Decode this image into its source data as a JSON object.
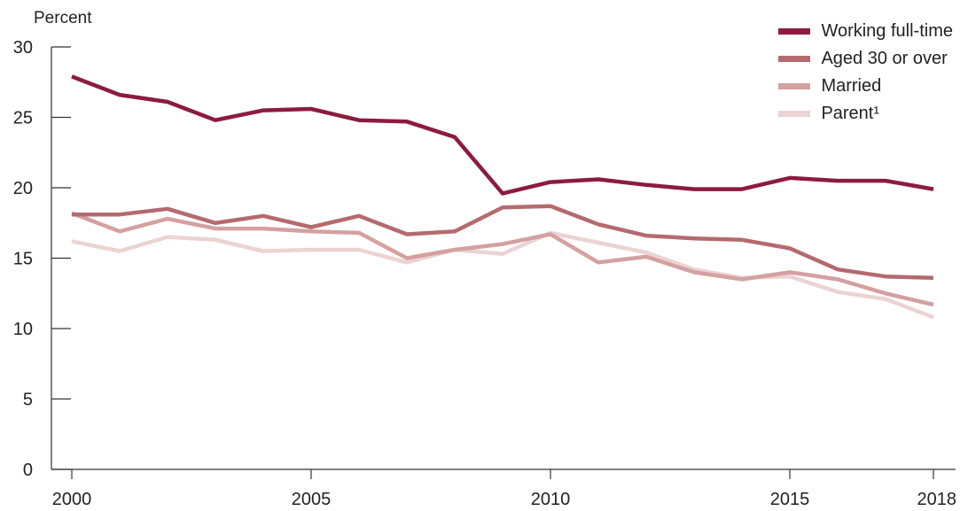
{
  "chart_data": {
    "type": "line",
    "title": "",
    "ylabel": "Percent",
    "xlabel": "",
    "ylim": [
      0,
      30
    ],
    "yticks": [
      0,
      5,
      10,
      15,
      20,
      25,
      30
    ],
    "xlim": [
      2000,
      2018
    ],
    "xticks": [
      2000,
      2005,
      2010,
      2015,
      2018
    ],
    "grid": false,
    "legend_position": "top-right",
    "x": [
      2000,
      2001,
      2002,
      2003,
      2004,
      2005,
      2006,
      2007,
      2008,
      2009,
      2010,
      2011,
      2012,
      2013,
      2014,
      2015,
      2016,
      2017,
      2018
    ],
    "series": [
      {
        "name": "Working full-time",
        "color": "#8c1b3e",
        "values": [
          27.9,
          26.6,
          26.1,
          24.8,
          25.5,
          25.6,
          24.8,
          24.7,
          23.6,
          19.6,
          20.4,
          20.6,
          20.2,
          19.9,
          19.9,
          20.7,
          20.5,
          20.5,
          19.9
        ]
      },
      {
        "name": "Aged 30 or over",
        "color": "#b46a6e",
        "values": [
          18.1,
          18.1,
          18.5,
          17.5,
          18.0,
          17.2,
          18.0,
          16.7,
          16.9,
          18.6,
          18.7,
          17.4,
          16.6,
          16.4,
          16.3,
          15.7,
          14.2,
          13.7,
          13.6
        ]
      },
      {
        "name": "Married",
        "color": "#d4a0a0",
        "values": [
          18.2,
          16.9,
          17.8,
          17.1,
          17.1,
          16.9,
          16.8,
          15.0,
          15.6,
          16.0,
          16.7,
          14.7,
          15.1,
          14.0,
          13.5,
          14.0,
          13.5,
          12.5,
          11.7
        ]
      },
      {
        "name": "Parent¹",
        "color": "#ecd3d3",
        "values": [
          16.2,
          15.5,
          16.5,
          16.3,
          15.5,
          15.6,
          15.6,
          14.7,
          15.6,
          15.3,
          16.8,
          16.1,
          15.4,
          14.2,
          13.6,
          13.7,
          12.6,
          12.1,
          10.8
        ]
      }
    ]
  }
}
